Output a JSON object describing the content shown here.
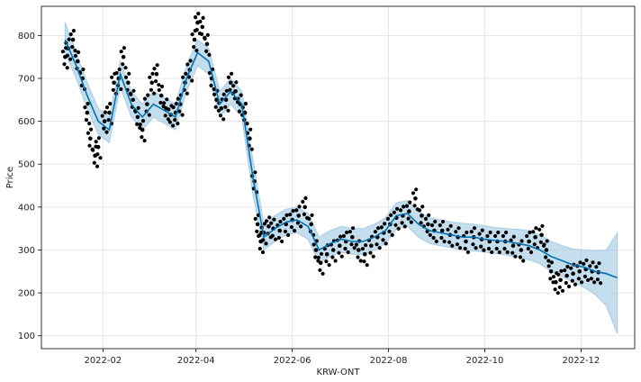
{
  "chart_data": {
    "type": "line",
    "title": "",
    "xlabel": "KRW-ONT",
    "ylabel": "Price",
    "grid": true,
    "legend": "none",
    "x_tick_labels": [
      "2022-02",
      "2022-04",
      "2022-06",
      "2022-08",
      "2022-10",
      "2022-12"
    ],
    "y_tick_labels": [
      "100",
      "200",
      "300",
      "400",
      "500",
      "600",
      "700",
      "800"
    ],
    "y_ticks": [
      100,
      200,
      300,
      400,
      500,
      600,
      700,
      800
    ],
    "x_ticks": [
      "2022-02-01",
      "2022-04-01",
      "2022-06-01",
      "2022-08-01",
      "2022-10-01",
      "2022-12-01"
    ],
    "xlim": [
      "2021-12-24",
      "2023-01-04"
    ],
    "ylim": [
      70,
      868
    ],
    "colors": {
      "observed": "#000000",
      "forecast": "#0072b2",
      "interval": "#a6cce3",
      "grid": "#e0e0e0",
      "frame": "#000000"
    },
    "series": [
      {
        "role": "forecast",
        "x": [
          "2022-01-08",
          "2022-01-15",
          "2022-01-22",
          "2022-01-29",
          "2022-02-05",
          "2022-02-12",
          "2022-02-19",
          "2022-02-26",
          "2022-03-05",
          "2022-03-12",
          "2022-03-19",
          "2022-03-26",
          "2022-04-02",
          "2022-04-09",
          "2022-04-16",
          "2022-04-23",
          "2022-04-30",
          "2022-05-07",
          "2022-05-14",
          "2022-05-21",
          "2022-05-28",
          "2022-06-04",
          "2022-06-11",
          "2022-06-18",
          "2022-06-25",
          "2022-07-02",
          "2022-07-09",
          "2022-07-16",
          "2022-07-23",
          "2022-07-30",
          "2022-08-06",
          "2022-08-13",
          "2022-08-20",
          "2022-08-27",
          "2022-09-03",
          "2022-09-10",
          "2022-09-17",
          "2022-09-24",
          "2022-10-01",
          "2022-10-08",
          "2022-10-15",
          "2022-10-22",
          "2022-10-29",
          "2022-11-05",
          "2022-11-12",
          "2022-11-19",
          "2022-11-26",
          "2022-12-03",
          "2022-12-10",
          "2022-12-17",
          "2022-12-24"
        ],
        "y": [
          790,
          730,
          660,
          600,
          580,
          710,
          640,
          610,
          640,
          625,
          610,
          700,
          760,
          740,
          640,
          670,
          640,
          470,
          330,
          350,
          365,
          370,
          355,
          300,
          315,
          325,
          320,
          320,
          330,
          345,
          380,
          385,
          360,
          345,
          340,
          335,
          330,
          330,
          325,
          322,
          320,
          315,
          310,
          300,
          285,
          275,
          265,
          260,
          250,
          245,
          235
        ]
      },
      {
        "role": "uncertainty",
        "x": [
          "2022-01-08",
          "2022-01-15",
          "2022-01-22",
          "2022-01-29",
          "2022-02-05",
          "2022-02-12",
          "2022-02-19",
          "2022-02-26",
          "2022-03-05",
          "2022-03-12",
          "2022-03-19",
          "2022-03-26",
          "2022-04-02",
          "2022-04-09",
          "2022-04-16",
          "2022-04-23",
          "2022-04-30",
          "2022-05-07",
          "2022-05-14",
          "2022-05-21",
          "2022-05-28",
          "2022-06-04",
          "2022-06-11",
          "2022-06-18",
          "2022-06-25",
          "2022-07-02",
          "2022-07-09",
          "2022-07-16",
          "2022-07-23",
          "2022-07-30",
          "2022-08-06",
          "2022-08-13",
          "2022-08-20",
          "2022-08-27",
          "2022-09-03",
          "2022-09-10",
          "2022-09-17",
          "2022-09-24",
          "2022-10-01",
          "2022-10-08",
          "2022-10-15",
          "2022-10-22",
          "2022-10-29",
          "2022-11-05",
          "2022-11-12",
          "2022-11-19",
          "2022-11-26",
          "2022-12-03",
          "2022-12-10",
          "2022-12-17",
          "2022-12-24"
        ],
        "lower": [
          760,
          700,
          630,
          570,
          550,
          680,
          610,
          580,
          610,
          595,
          580,
          670,
          730,
          710,
          610,
          640,
          610,
          430,
          300,
          320,
          335,
          340,
          325,
          270,
          285,
          295,
          290,
          290,
          300,
          315,
          350,
          355,
          330,
          315,
          310,
          305,
          300,
          298,
          295,
          292,
          288,
          283,
          277,
          268,
          250,
          238,
          225,
          213,
          196,
          170,
          105
        ],
        "upper": [
          830,
          760,
          690,
          630,
          610,
          740,
          670,
          640,
          670,
          655,
          640,
          730,
          790,
          770,
          670,
          700,
          670,
          510,
          360,
          380,
          395,
          400,
          385,
          330,
          345,
          355,
          350,
          350,
          360,
          375,
          410,
          415,
          390,
          375,
          370,
          365,
          362,
          360,
          356,
          352,
          350,
          348,
          345,
          335,
          320,
          310,
          302,
          300,
          298,
          300,
          340
        ]
      },
      {
        "role": "observed",
        "x": [
          "2022-01-08",
          "2022-01-10",
          "2022-01-13",
          "2022-01-16",
          "2022-01-19",
          "2022-01-22",
          "2022-01-24",
          "2022-01-27",
          "2022-01-29",
          "2022-02-02",
          "2022-02-05",
          "2022-02-08",
          "2022-02-11",
          "2022-02-14",
          "2022-02-17",
          "2022-02-20",
          "2022-02-23",
          "2022-02-26",
          "2022-03-01",
          "2022-03-04",
          "2022-03-07",
          "2022-03-10",
          "2022-03-13",
          "2022-03-16",
          "2022-03-19",
          "2022-03-22",
          "2022-03-25",
          "2022-03-28",
          "2022-03-31",
          "2022-04-02",
          "2022-04-05",
          "2022-04-08",
          "2022-04-11",
          "2022-04-14",
          "2022-04-17",
          "2022-04-20",
          "2022-04-23",
          "2022-04-26",
          "2022-04-29",
          "2022-05-02",
          "2022-05-05",
          "2022-05-08",
          "2022-05-10",
          "2022-05-12",
          "2022-05-14",
          "2022-05-17",
          "2022-05-20",
          "2022-05-24",
          "2022-05-28",
          "2022-06-01",
          "2022-06-05",
          "2022-06-09",
          "2022-06-13",
          "2022-06-16",
          "2022-06-19",
          "2022-06-23",
          "2022-06-27",
          "2022-07-01",
          "2022-07-05",
          "2022-07-09",
          "2022-07-13",
          "2022-07-17",
          "2022-07-21",
          "2022-07-25",
          "2022-07-29",
          "2022-08-02",
          "2022-08-06",
          "2022-08-10",
          "2022-08-14",
          "2022-08-18",
          "2022-08-22",
          "2022-08-26",
          "2022-08-30",
          "2022-09-04",
          "2022-09-09",
          "2022-09-14",
          "2022-09-19",
          "2022-09-24",
          "2022-09-29",
          "2022-10-04",
          "2022-10-09",
          "2022-10-14",
          "2022-10-19",
          "2022-10-24",
          "2022-10-29",
          "2022-11-02",
          "2022-11-06",
          "2022-11-09",
          "2022-11-12",
          "2022-11-15",
          "2022-11-18",
          "2022-11-22",
          "2022-11-26",
          "2022-11-30",
          "2022-12-04",
          "2022-12-08",
          "2022-12-12"
        ],
        "y": [
          750,
          770,
          790,
          740,
          700,
          620,
          560,
          520,
          540,
          600,
          620,
          690,
          700,
          750,
          690,
          650,
          610,
          580,
          640,
          690,
          710,
          660,
          630,
          615,
          620,
          640,
          690,
          720,
          790,
          830,
          820,
          780,
          700,
          650,
          630,
          650,
          690,
          670,
          640,
          620,
          560,
          460,
          360,
          320,
          340,
          355,
          350,
          345,
          360,
          370,
          380,
          400,
          360,
          300,
          270,
          290,
          300,
          310,
          320,
          330,
          300,
          290,
          310,
          330,
          340,
          360,
          375,
          380,
          390,
          420,
          380,
          360,
          345,
          345,
          335,
          330,
          320,
          330,
          325,
          320,
          320,
          320,
          310,
          300,
          320,
          330,
          335,
          300,
          250,
          225,
          230,
          240,
          245,
          250,
          255,
          250,
          248
        ]
      }
    ]
  }
}
